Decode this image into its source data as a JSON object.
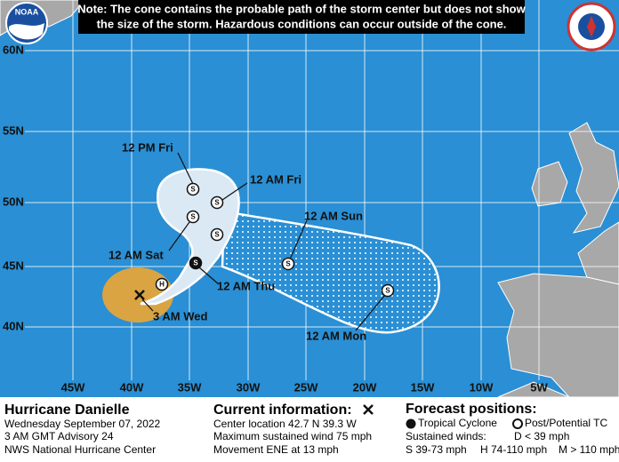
{
  "note": [
    "Note: The cone contains the probable path of the storm center but does not show",
    "the size of the storm. Hazardous conditions can occur outside of the cone."
  ],
  "logo": "NOAA",
  "map": {
    "lon_labels": [
      "45W",
      "40W",
      "35W",
      "30W",
      "25W",
      "20W",
      "15W",
      "10W",
      "5W"
    ],
    "lat_labels": [
      "60N",
      "55N",
      "50N",
      "45N",
      "40N"
    ],
    "time_labels": [
      "12 PM Fri",
      "12 AM Fri",
      "12 AM Sat",
      "12 AM Sun",
      "12 AM Thu",
      "3 AM Wed",
      "12 AM Mon"
    ],
    "markers": [
      "H",
      "S",
      "S",
      "S",
      "S",
      "S",
      "S",
      "S"
    ]
  },
  "panel": {
    "storm": [
      "Hurricane Danielle",
      "Wednesday September 07, 2022",
      "3 AM GMT Advisory 24",
      "NWS National Hurricane Center"
    ],
    "current": [
      "Current information:",
      "Center location 42.7 N 39.3 W",
      "Maximum sustained wind 75 mph",
      "Movement ENE at 13 mph"
    ],
    "forecast_title": "Forecast positions:",
    "legend": [
      "Tropical Cyclone",
      "Post/Potential TC"
    ],
    "winds_title": "Sustained winds:",
    "winds": [
      "D < 39 mph",
      "S 39-73 mph",
      "H 74-110 mph",
      "M > 110 mph"
    ]
  }
}
